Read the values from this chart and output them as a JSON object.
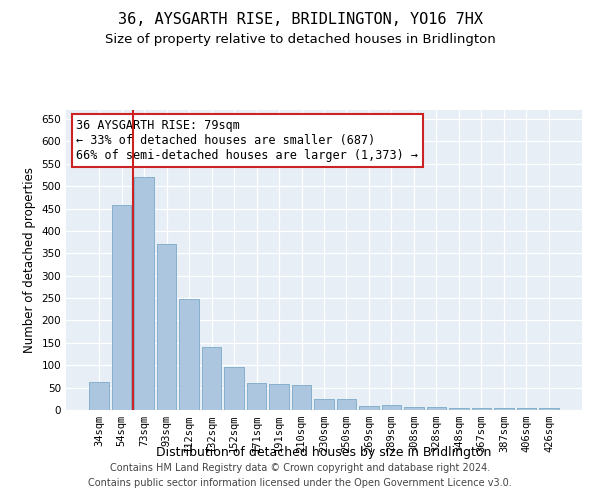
{
  "title": "36, AYSGARTH RISE, BRIDLINGTON, YO16 7HX",
  "subtitle": "Size of property relative to detached houses in Bridlington",
  "xlabel": "Distribution of detached houses by size in Bridlington",
  "ylabel": "Number of detached properties",
  "categories": [
    "34sqm",
    "54sqm",
    "73sqm",
    "93sqm",
    "112sqm",
    "132sqm",
    "152sqm",
    "171sqm",
    "191sqm",
    "210sqm",
    "230sqm",
    "250sqm",
    "269sqm",
    "289sqm",
    "308sqm",
    "328sqm",
    "348sqm",
    "367sqm",
    "387sqm",
    "406sqm",
    "426sqm"
  ],
  "values": [
    62,
    457,
    521,
    370,
    248,
    140,
    95,
    60,
    57,
    55,
    25,
    25,
    10,
    12,
    7,
    6,
    5,
    5,
    5,
    5,
    4
  ],
  "bar_color": "#adc6e0",
  "bar_edge_color": "#7aaac8",
  "vline_x": 2.0,
  "vline_color": "#cc2222",
  "annotation_text": "36 AYSGARTH RISE: 79sqm\n← 33% of detached houses are smaller (687)\n66% of semi-detached houses are larger (1,373) →",
  "annotation_box_color": "#cc2222",
  "annotation_box_fill": "white",
  "ylim": [
    0,
    670
  ],
  "yticks": [
    0,
    50,
    100,
    150,
    200,
    250,
    300,
    350,
    400,
    450,
    500,
    550,
    600,
    650
  ],
  "background_color": "#e8eef6",
  "grid_color": "white",
  "footer1": "Contains HM Land Registry data © Crown copyright and database right 2024.",
  "footer2": "Contains public sector information licensed under the Open Government Licence v3.0.",
  "title_fontsize": 11,
  "subtitle_fontsize": 9.5,
  "xlabel_fontsize": 9,
  "ylabel_fontsize": 8.5,
  "tick_fontsize": 7.5,
  "annotation_fontsize": 8.5,
  "footer_fontsize": 7
}
